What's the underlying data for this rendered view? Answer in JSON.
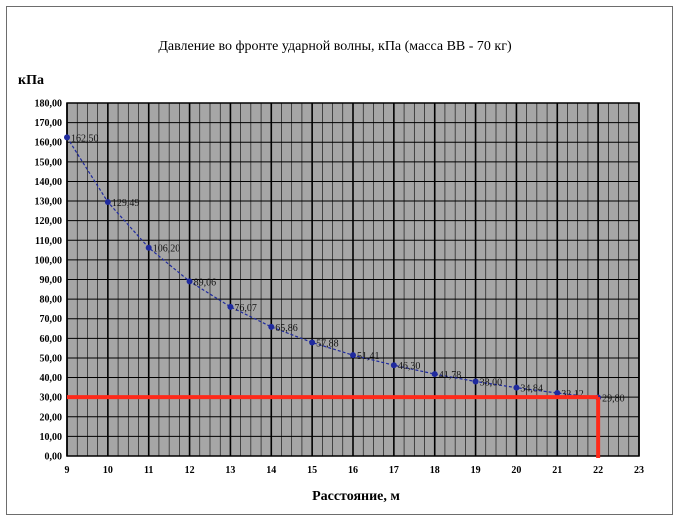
{
  "chart_data": {
    "type": "line",
    "title": "Давление во фронте ударной волны, кПа (масса ВВ - 70 кг)",
    "ylabel": "кПа",
    "xlabel": "Расстояние, м",
    "xlim": [
      9,
      23
    ],
    "ylim": [
      0,
      180
    ],
    "x_ticks": [
      "9",
      "10",
      "11",
      "12",
      "13",
      "14",
      "15",
      "16",
      "17",
      "18",
      "19",
      "20",
      "21",
      "22",
      "23"
    ],
    "y_ticks": [
      "0,00",
      "10,00",
      "20,00",
      "30,00",
      "40,00",
      "50,00",
      "60,00",
      "70,00",
      "80,00",
      "90,00",
      "100,00",
      "110,00",
      "120,00",
      "130,00",
      "140,00",
      "150,00",
      "160,00",
      "170,00",
      "180,00"
    ],
    "grid": true,
    "series": [
      {
        "x": [
          9,
          10,
          11,
          12,
          13,
          14,
          15,
          16,
          17,
          18,
          19,
          20,
          21,
          22
        ],
        "values": [
          162.5,
          129.49,
          106.2,
          89.06,
          76.07,
          65.86,
          57.88,
          51.41,
          46.3,
          41.78,
          38.0,
          34.84,
          32.12,
          29.8
        ],
        "labels": [
          "162,50",
          "129,49",
          "106,20",
          "89,06",
          "76,07",
          "65,86",
          "57,88",
          "51,41",
          "46,30",
          "41,78",
          "38,00",
          "34,84",
          "32,12",
          "29,80"
        ],
        "color": "#1f2a9e"
      }
    ],
    "reference_lines": {
      "horizontal_y": 30,
      "vertical_x": 22,
      "color": "#ff2a1a"
    },
    "plot_background": "#a6a6a6"
  }
}
